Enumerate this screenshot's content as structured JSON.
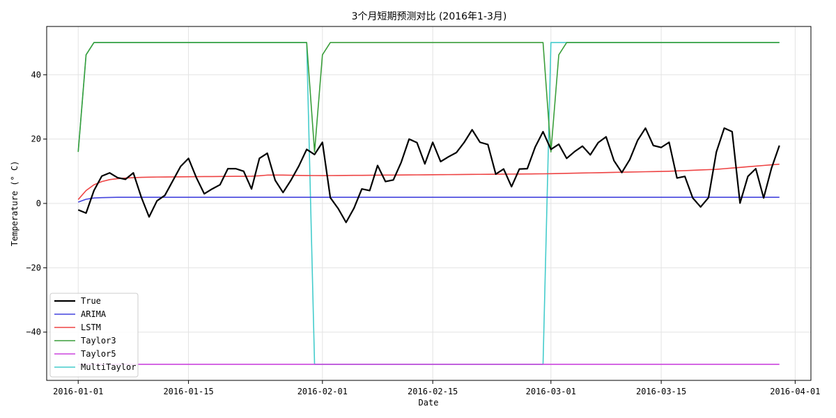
{
  "chart_data": {
    "type": "line",
    "title": "3个月短期预测对比 (2016年1-3月)",
    "xlabel": "Date",
    "ylabel": "Temperature (° C)",
    "xlim": [
      "2015-12-28",
      "2016-04-03"
    ],
    "ylim": [
      -55,
      55
    ],
    "x_ticks": [
      "2016-01-01",
      "2016-01-15",
      "2016-02-01",
      "2016-02-15",
      "2016-03-01",
      "2016-03-15",
      "2016-04-01"
    ],
    "y_ticks": [
      -40,
      -20,
      0,
      20,
      40
    ],
    "grid": true,
    "legend_position": "lower-left",
    "start_date": "2016-01-01",
    "series": [
      {
        "name": "True",
        "color": "#000000",
        "width": 2.2,
        "values": [
          -2,
          -3,
          4,
          8.5,
          9.5,
          8,
          7.5,
          9.5,
          2,
          -4.2,
          0.8,
          2.5,
          7,
          11.5,
          14,
          8,
          3,
          4.5,
          5.8,
          10.8,
          10.8,
          10,
          4.5,
          14,
          15.6,
          7.2,
          3.4,
          7.2,
          11.6,
          16.8,
          15.2,
          19,
          1.8,
          -1.6,
          -5.9,
          -1.5,
          4.5,
          4,
          11.8,
          6.8,
          7.3,
          12.8,
          20,
          18.9,
          12.3,
          19,
          13,
          14.5,
          15.8,
          19,
          22.9,
          19,
          18.3,
          9.1,
          10.7,
          5.2,
          10.7,
          10.8,
          17.5,
          22.3,
          16.8,
          18.4,
          14,
          16.1,
          17.8,
          15.1,
          18.9,
          20.7,
          13.3,
          9.6,
          13.6,
          19.6,
          23.4,
          18,
          17.4,
          19,
          7.9,
          8.4,
          1.7,
          -1.1,
          1.8,
          16,
          23.4,
          22.3,
          0.1,
          8.4,
          10.8,
          1.7,
          11,
          18
        ]
      },
      {
        "name": "ARIMA",
        "color": "#4444dd",
        "width": 1.6,
        "values": [
          0.4,
          1.3,
          1.7,
          1.8,
          1.85,
          1.9,
          1.9,
          1.9,
          1.9,
          1.9,
          1.9,
          1.9,
          1.9,
          1.9,
          1.9,
          1.9,
          1.9,
          1.9,
          1.9,
          1.9,
          1.9,
          1.9,
          1.9,
          1.9,
          1.9,
          1.9,
          1.9,
          1.9,
          1.9,
          1.9,
          1.9,
          1.9,
          1.9,
          1.9,
          1.9,
          1.9,
          1.9,
          1.9,
          1.9,
          1.9,
          1.9,
          1.9,
          1.9,
          1.9,
          1.9,
          1.9,
          1.9,
          1.9,
          1.9,
          1.9,
          1.9,
          1.9,
          1.9,
          1.9,
          1.9,
          1.9,
          1.9,
          1.9,
          1.9,
          1.9,
          1.9,
          1.9,
          1.9,
          1.9,
          1.9,
          1.9,
          1.9,
          1.9,
          1.9,
          1.9,
          1.9,
          1.9,
          1.9,
          1.9,
          1.9,
          1.9,
          1.9,
          1.9,
          1.9,
          1.9,
          1.9,
          1.9,
          1.9,
          1.9,
          1.9,
          1.9,
          1.9,
          1.9,
          1.9,
          1.9
        ]
      },
      {
        "name": "LSTM",
        "color": "#ee4444",
        "width": 1.6,
        "values": [
          1.2,
          4,
          5.8,
          6.8,
          7.4,
          7.7,
          7.9,
          8,
          8.1,
          8.15,
          8.2,
          8.22,
          8.25,
          8.27,
          8.3,
          8.32,
          8.34,
          8.36,
          8.38,
          8.4,
          8.42,
          8.44,
          8.46,
          8.6,
          8.8,
          8.8,
          8.8,
          8.75,
          8.7,
          8.68,
          8.66,
          8.65,
          8.66,
          8.68,
          8.7,
          8.72,
          8.74,
          8.76,
          8.78,
          8.8,
          8.82,
          8.84,
          8.86,
          8.88,
          8.9,
          8.92,
          8.94,
          8.96,
          8.98,
          9,
          9.02,
          9.04,
          9.06,
          9.08,
          9.1,
          9.12,
          9.14,
          9.16,
          9.18,
          9.2,
          9.25,
          9.3,
          9.35,
          9.4,
          9.45,
          9.5,
          9.55,
          9.6,
          9.65,
          9.7,
          9.75,
          9.8,
          9.85,
          9.9,
          9.95,
          10,
          10.1,
          10.2,
          10.3,
          10.4,
          10.5,
          10.6,
          10.8,
          11,
          11.2,
          11.4,
          11.6,
          11.8,
          12,
          12.2
        ]
      },
      {
        "name": "Taylor3",
        "color": "#3a9e3a",
        "width": 1.6,
        "values": [
          16,
          46.2,
          50,
          50,
          50,
          50,
          50,
          50,
          50,
          50,
          50,
          50,
          50,
          50,
          50,
          50,
          50,
          50,
          50,
          50,
          50,
          50,
          50,
          50,
          50,
          50,
          50,
          50,
          50,
          50,
          16,
          46.2,
          50,
          50,
          50,
          50,
          50,
          50,
          50,
          50,
          50,
          50,
          50,
          50,
          50,
          50,
          50,
          50,
          50,
          50,
          50,
          50,
          50,
          50,
          50,
          50,
          50,
          50,
          50,
          50,
          16,
          46.2,
          50,
          50,
          50,
          50,
          50,
          50,
          50,
          50,
          50,
          50,
          50,
          50,
          50,
          50,
          50,
          50,
          50,
          50,
          50,
          50,
          50,
          50,
          50,
          50,
          50,
          50,
          50,
          50
        ]
      },
      {
        "name": "Taylor5",
        "color": "#cc44dd",
        "width": 1.6,
        "values": [
          -50,
          -50,
          -50,
          -50,
          -50,
          -50,
          -50,
          -50,
          -50,
          -50,
          -50,
          -50,
          -50,
          -50,
          -50,
          -50,
          -50,
          -50,
          -50,
          -50,
          -50,
          -50,
          -50,
          -50,
          -50,
          -50,
          -50,
          -50,
          -50,
          -50,
          -50,
          -50,
          -50,
          -50,
          -50,
          -50,
          -50,
          -50,
          -50,
          -50,
          -50,
          -50,
          -50,
          -50,
          -50,
          -50,
          -50,
          -50,
          -50,
          -50,
          -50,
          -50,
          -50,
          -50,
          -50,
          -50,
          -50,
          -50,
          -50,
          -50,
          -50,
          -50,
          -50,
          -50,
          -50,
          -50,
          -50,
          -50,
          -50,
          -50,
          -50,
          -50,
          -50,
          -50,
          -50,
          -50,
          -50,
          -50,
          -50,
          -50,
          -50,
          -50,
          -50,
          -50,
          -50,
          -50,
          -50,
          -50,
          -50,
          -50
        ]
      },
      {
        "name": "MultiTaylor",
        "color": "#44cccc",
        "width": 1.6,
        "values": [
          16,
          46.2,
          50,
          50,
          50,
          50,
          50,
          50,
          50,
          50,
          50,
          50,
          50,
          50,
          50,
          50,
          50,
          50,
          50,
          50,
          50,
          50,
          50,
          50,
          50,
          50,
          50,
          50,
          50,
          50,
          -50,
          -50,
          -50,
          -50,
          -50,
          -50,
          -50,
          -50,
          -50,
          -50,
          -50,
          -50,
          -50,
          -50,
          -50,
          -50,
          -50,
          -50,
          -50,
          -50,
          -50,
          -50,
          -50,
          -50,
          -50,
          -50,
          -50,
          -50,
          -50,
          -50,
          50,
          50,
          50,
          50,
          50,
          50,
          50,
          50,
          50,
          50,
          50,
          50,
          50,
          50,
          50,
          50,
          50,
          50,
          50,
          50,
          50,
          50,
          50,
          50,
          50,
          50,
          50,
          50,
          50,
          50
        ]
      }
    ]
  }
}
